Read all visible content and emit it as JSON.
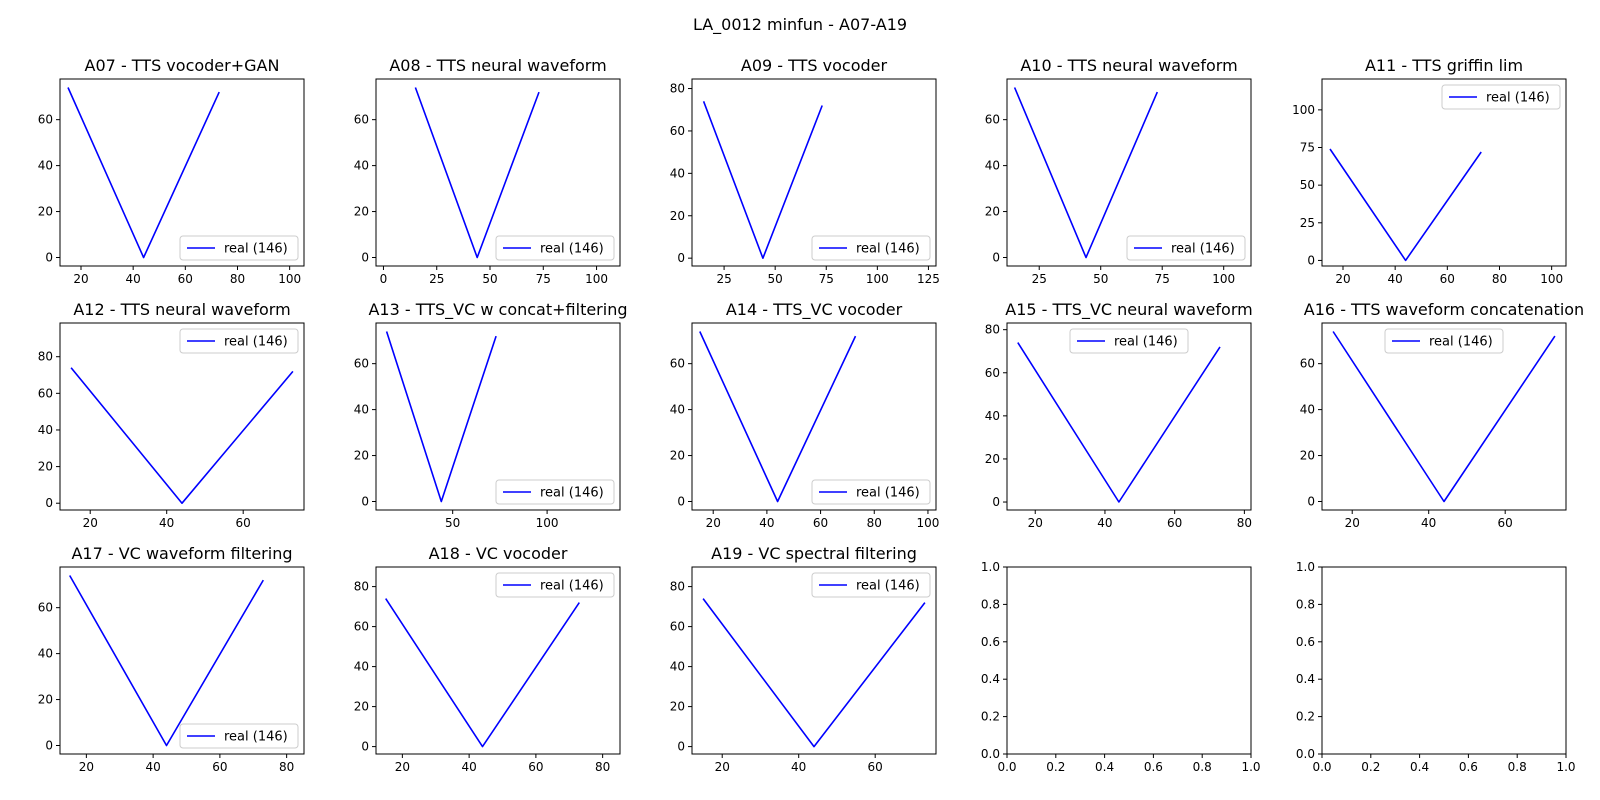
{
  "figure": {
    "title": "LA_0012 minfun - A07-A19"
  },
  "style": {
    "line_color": "#0000ff",
    "axes_color": "#000000",
    "legend_border": "#cccccc"
  },
  "chart_data": [
    {
      "type": "line",
      "title": "A07 - TTS vocoder+GAN",
      "xlim": [
        11.95,
        105.5
      ],
      "ylim": [
        -3.7,
        77.7
      ],
      "xticks": [
        20,
        40,
        60,
        80,
        100
      ],
      "yticks": [
        0,
        20,
        40,
        60
      ],
      "legend_loc": "lower-right",
      "series": [
        {
          "name": "real (146)",
          "color": "#0000ff",
          "x": [
            15,
            44,
            73
          ],
          "y": [
            74,
            0,
            72
          ]
        }
      ]
    },
    {
      "type": "line",
      "title": "A08 - TTS neural waveform",
      "xlim": [
        -3.5,
        111
      ],
      "ylim": [
        -3.7,
        77.7
      ],
      "xticks": [
        0,
        25,
        50,
        75,
        100
      ],
      "yticks": [
        0,
        20,
        40,
        60
      ],
      "legend_loc": "lower-right",
      "series": [
        {
          "name": "real (146)",
          "color": "#0000ff",
          "x": [
            15,
            44,
            73
          ],
          "y": [
            74,
            0,
            72
          ]
        }
      ]
    },
    {
      "type": "line",
      "title": "A09 - TTS vocoder",
      "xlim": [
        9.3,
        128.7
      ],
      "ylim": [
        -3.7,
        84.5
      ],
      "xticks": [
        25,
        50,
        75,
        100,
        125
      ],
      "yticks": [
        0,
        20,
        40,
        60,
        80
      ],
      "legend_loc": "lower-right",
      "series": [
        {
          "name": "real (146)",
          "color": "#0000ff",
          "x": [
            15,
            44,
            73
          ],
          "y": [
            74,
            0,
            72
          ]
        }
      ]
    },
    {
      "type": "line",
      "title": "A10 - TTS neural waveform",
      "xlim": [
        11.9,
        111.1
      ],
      "ylim": [
        -3.7,
        77.7
      ],
      "xticks": [
        25,
        50,
        75,
        100
      ],
      "yticks": [
        0,
        20,
        40,
        60
      ],
      "legend_loc": "lower-right",
      "series": [
        {
          "name": "real (146)",
          "color": "#0000ff",
          "x": [
            15,
            44,
            73
          ],
          "y": [
            74,
            0,
            72
          ]
        }
      ]
    },
    {
      "type": "line",
      "title": "A11 - TTS griffin lim",
      "xlim": [
        11.95,
        105.5
      ],
      "ylim": [
        -3.7,
        120.5
      ],
      "xticks": [
        20,
        40,
        60,
        80,
        100
      ],
      "yticks": [
        0,
        25,
        50,
        75,
        100
      ],
      "legend_loc": "upper-right",
      "series": [
        {
          "name": "real (146)",
          "color": "#0000ff",
          "x": [
            15,
            44,
            73
          ],
          "y": [
            74,
            0,
            72
          ]
        }
      ]
    },
    {
      "type": "line",
      "title": "A12 - TTS neural waveform",
      "xlim": [
        12.1,
        75.9
      ],
      "ylim": [
        -3.7,
        98.4
      ],
      "xticks": [
        20,
        40,
        60
      ],
      "yticks": [
        0,
        20,
        40,
        60,
        80
      ],
      "legend_loc": "upper-right",
      "series": [
        {
          "name": "real (146)",
          "color": "#0000ff",
          "x": [
            15,
            44,
            73
          ],
          "y": [
            74,
            0,
            72
          ]
        }
      ]
    },
    {
      "type": "line",
      "title": "A13 - TTS_VC w concat+filtering",
      "xlim": [
        9.4,
        138.6
      ],
      "ylim": [
        -3.7,
        77.7
      ],
      "xticks": [
        50,
        100
      ],
      "yticks": [
        0,
        20,
        40,
        60
      ],
      "legend_loc": "lower-right",
      "series": [
        {
          "name": "real (146)",
          "color": "#0000ff",
          "x": [
            15,
            44,
            73
          ],
          "y": [
            74,
            0,
            72
          ]
        }
      ]
    },
    {
      "type": "line",
      "title": "A14 - TTS_VC vocoder",
      "xlim": [
        12.1,
        103
      ],
      "ylim": [
        -3.7,
        77.7
      ],
      "xticks": [
        20,
        40,
        60,
        80,
        100
      ],
      "yticks": [
        0,
        20,
        40,
        60
      ],
      "legend_loc": "lower-right",
      "series": [
        {
          "name": "real (146)",
          "color": "#0000ff",
          "x": [
            15,
            44,
            73
          ],
          "y": [
            74,
            0,
            72
          ]
        }
      ]
    },
    {
      "type": "line",
      "title": "A15 - TTS_VC neural waveform",
      "xlim": [
        11.9,
        81.9
      ],
      "ylim": [
        -3.7,
        83.1
      ],
      "xticks": [
        20,
        40,
        60,
        80
      ],
      "yticks": [
        0,
        20,
        40,
        60,
        80
      ],
      "legend_loc": "upper-center",
      "series": [
        {
          "name": "real (146)",
          "color": "#0000ff",
          "x": [
            15,
            44,
            73
          ],
          "y": [
            74,
            0,
            72
          ]
        }
      ]
    },
    {
      "type": "line",
      "title": "A16 - TTS waveform concatenation",
      "xlim": [
        12.1,
        75.9
      ],
      "ylim": [
        -3.7,
        77.7
      ],
      "xticks": [
        20,
        40,
        60
      ],
      "yticks": [
        0,
        20,
        40,
        60
      ],
      "legend_loc": "upper-center",
      "series": [
        {
          "name": "real (146)",
          "color": "#0000ff",
          "x": [
            15,
            44,
            73
          ],
          "y": [
            74,
            0,
            72
          ]
        }
      ]
    },
    {
      "type": "line",
      "title": "A17 - VC waveform filtering",
      "xlim": [
        12.1,
        85.2
      ],
      "ylim": [
        -3.7,
        77.7
      ],
      "xticks": [
        20,
        40,
        60,
        80
      ],
      "yticks": [
        0,
        20,
        40,
        60
      ],
      "legend_loc": "lower-right",
      "series": [
        {
          "name": "real (146)",
          "color": "#0000ff",
          "x": [
            15,
            44,
            73
          ],
          "y": [
            74,
            0,
            72
          ]
        }
      ]
    },
    {
      "type": "line",
      "title": "A18 - VC vocoder",
      "xlim": [
        12.1,
        85.2
      ],
      "ylim": [
        -3.7,
        89.8
      ],
      "xticks": [
        20,
        40,
        60,
        80
      ],
      "yticks": [
        0,
        20,
        40,
        60,
        80
      ],
      "legend_loc": "upper-right",
      "series": [
        {
          "name": "real (146)",
          "color": "#0000ff",
          "x": [
            15,
            44,
            73
          ],
          "y": [
            74,
            0,
            72
          ]
        }
      ]
    },
    {
      "type": "line",
      "title": "A19 - VC spectral filtering",
      "xlim": [
        12.1,
        75.9
      ],
      "ylim": [
        -3.7,
        89.8
      ],
      "xticks": [
        20,
        40,
        60
      ],
      "yticks": [
        0,
        20,
        40,
        60,
        80
      ],
      "legend_loc": "upper-right",
      "series": [
        {
          "name": "real (146)",
          "color": "#0000ff",
          "x": [
            15,
            44,
            73
          ],
          "y": [
            74,
            0,
            72
          ]
        }
      ]
    },
    {
      "type": "line",
      "title": "",
      "xlim": [
        0,
        1
      ],
      "ylim": [
        0,
        1
      ],
      "xticks": [
        0.0,
        0.2,
        0.4,
        0.6,
        0.8,
        1.0
      ],
      "yticks": [
        0.0,
        0.2,
        0.4,
        0.6,
        0.8,
        1.0
      ],
      "tick_decimals": 1,
      "series": []
    },
    {
      "type": "line",
      "title": "",
      "xlim": [
        0,
        1
      ],
      "ylim": [
        0,
        1
      ],
      "xticks": [
        0.0,
        0.2,
        0.4,
        0.6,
        0.8,
        1.0
      ],
      "yticks": [
        0.0,
        0.2,
        0.4,
        0.6,
        0.8,
        1.0
      ],
      "tick_decimals": 1,
      "series": []
    }
  ]
}
